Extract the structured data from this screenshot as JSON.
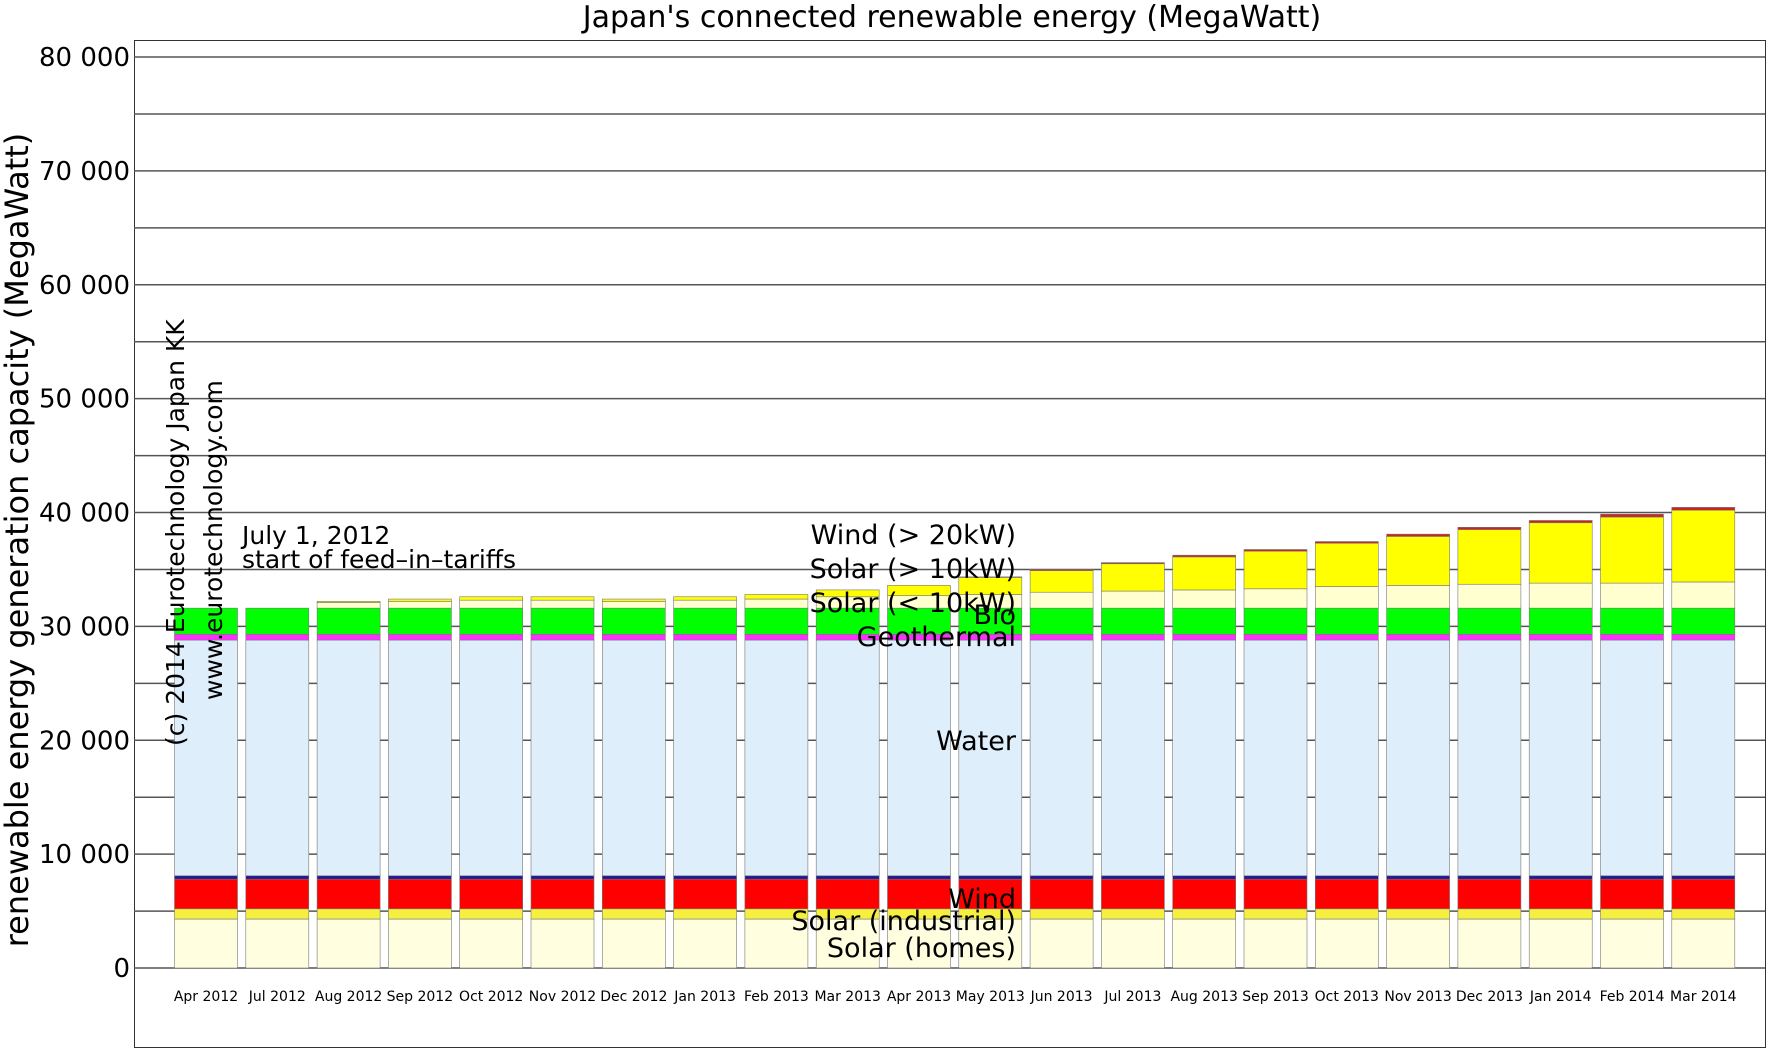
{
  "chart_data": {
    "type": "bar",
    "stacked": true,
    "title": "Japan's connected renewable energy (MegaWatt)",
    "ylabel": "renewable energy generation capacity (MegaWatt)",
    "xlabel": "",
    "ylim": [
      0,
      80000
    ],
    "yticks": [
      0,
      10000,
      20000,
      30000,
      40000,
      50000,
      60000,
      70000,
      80000
    ],
    "ytick_labels": [
      "0",
      "10 000",
      "20 000",
      "30 000",
      "40 000",
      "50 000",
      "60 000",
      "70 000",
      "80 000"
    ],
    "grid": true,
    "categories": [
      "Apr 2012",
      "Jul 2012",
      "Aug 2012",
      "Sep 2012",
      "Oct 2012",
      "Nov 2012",
      "Dec 2012",
      "Jan 2013",
      "Feb 2013",
      "Mar 2013",
      "Apr 2013",
      "May 2013",
      "Jun 2013",
      "Jul 2013",
      "Aug 2013",
      "Sep 2013",
      "Oct 2013",
      "Nov 2013",
      "Dec 2013",
      "Jan 2014",
      "Feb 2014",
      "Mar 2014"
    ],
    "series": [
      {
        "name": "Solar (homes)",
        "color": "#ffffe0",
        "values": [
          4300,
          4300,
          4300,
          4300,
          4300,
          4300,
          4300,
          4300,
          4300,
          4300,
          4300,
          4300,
          4300,
          4300,
          4300,
          4300,
          4300,
          4300,
          4300,
          4300,
          4300,
          4300
        ]
      },
      {
        "name": "Solar (industrial)",
        "color": "#f5ef40",
        "values": [
          900,
          900,
          900,
          900,
          900,
          900,
          900,
          900,
          900,
          900,
          900,
          900,
          900,
          900,
          900,
          900,
          900,
          900,
          900,
          900,
          900,
          900
        ]
      },
      {
        "name": "Wind",
        "color": "#ff0000",
        "values": [
          2600,
          2600,
          2600,
          2600,
          2600,
          2600,
          2600,
          2600,
          2600,
          2600,
          2600,
          2600,
          2600,
          2600,
          2600,
          2600,
          2600,
          2600,
          2600,
          2600,
          2600,
          2600
        ]
      },
      {
        "name": "",
        "color": "#1a1a99",
        "values": [
          300,
          300,
          300,
          300,
          300,
          300,
          300,
          300,
          300,
          300,
          300,
          300,
          300,
          300,
          300,
          300,
          300,
          300,
          300,
          300,
          300,
          300
        ]
      },
      {
        "name": "Water",
        "color": "#dfeefb",
        "values": [
          20700,
          20700,
          20700,
          20700,
          20700,
          20700,
          20700,
          20700,
          20700,
          20700,
          20700,
          20700,
          20700,
          20700,
          20700,
          20700,
          20700,
          20700,
          20700,
          20700,
          20700,
          20700
        ]
      },
      {
        "name": "Geothermal",
        "color": "#ff30ff",
        "values": [
          500,
          500,
          500,
          500,
          500,
          500,
          500,
          500,
          500,
          500,
          500,
          500,
          500,
          500,
          500,
          500,
          500,
          500,
          500,
          500,
          500,
          500
        ]
      },
      {
        "name": "Bio",
        "color": "#00ff00",
        "values": [
          2300,
          2300,
          2300,
          2300,
          2300,
          2300,
          2300,
          2300,
          2300,
          2300,
          2300,
          2300,
          2300,
          2300,
          2300,
          2300,
          2300,
          2300,
          2300,
          2300,
          2300,
          2300
        ]
      },
      {
        "name": "Solar (< 10kW)",
        "color": "#ffffd0",
        "values": [
          0,
          0,
          500,
          600,
          700,
          700,
          600,
          700,
          800,
          1000,
          1100,
          1200,
          1400,
          1500,
          1600,
          1700,
          1900,
          2000,
          2100,
          2200,
          2200,
          2300
        ]
      },
      {
        "name": "Solar (> 10kW)",
        "color": "#ffff00",
        "values": [
          0,
          0,
          100,
          200,
          300,
          300,
          200,
          300,
          400,
          600,
          900,
          1500,
          1900,
          2400,
          2900,
          3300,
          3800,
          4300,
          4800,
          5300,
          5800,
          6300
        ]
      },
      {
        "name": "Wind (> 20kW)",
        "color": "#cc2222",
        "values": [
          0,
          0,
          0,
          0,
          0,
          0,
          0,
          0,
          0,
          0,
          0,
          50,
          100,
          100,
          150,
          150,
          150,
          200,
          200,
          200,
          250,
          250
        ]
      }
    ],
    "annotations": {
      "feed_in_line1": "July 1, 2012",
      "feed_in_line2": "start of feed–in–tariffs",
      "copyright": "(c) 2014 Eurotechnology Japan KK",
      "website": "www.eurotechnology.com"
    }
  }
}
